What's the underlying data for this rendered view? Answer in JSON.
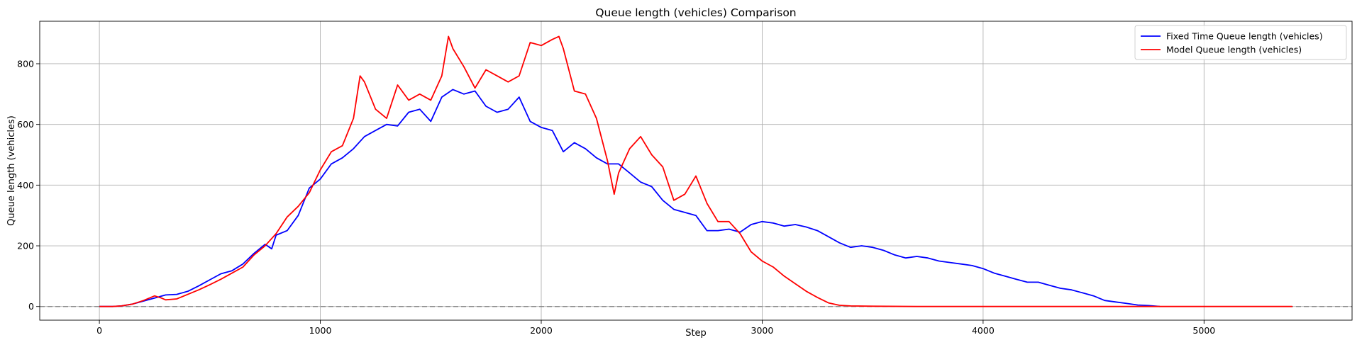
{
  "chart_data": {
    "type": "line",
    "title": "Queue length (vehicles) Comparison",
    "xlabel": "Step",
    "ylabel": "Queue length (vehicles)",
    "xlim": [
      -270,
      5670
    ],
    "ylim": [
      -45,
      940
    ],
    "xticks": [
      0,
      1000,
      2000,
      3000,
      4000,
      5000
    ],
    "yticks": [
      0,
      200,
      400,
      600,
      800
    ],
    "grid": true,
    "legend_position": "top-right",
    "reference_line": {
      "y": 0,
      "style": "dashed",
      "color": "#808080"
    },
    "series": [
      {
        "name": "Fixed Time Queue length (vehicles)",
        "color": "#0000ff",
        "points": [
          [
            0,
            0
          ],
          [
            60,
            0
          ],
          [
            100,
            2
          ],
          [
            150,
            8
          ],
          [
            200,
            18
          ],
          [
            250,
            28
          ],
          [
            300,
            38
          ],
          [
            350,
            40
          ],
          [
            400,
            50
          ],
          [
            450,
            68
          ],
          [
            500,
            88
          ],
          [
            550,
            108
          ],
          [
            600,
            118
          ],
          [
            650,
            140
          ],
          [
            700,
            175
          ],
          [
            750,
            205
          ],
          [
            780,
            190
          ],
          [
            800,
            235
          ],
          [
            850,
            250
          ],
          [
            900,
            300
          ],
          [
            950,
            390
          ],
          [
            1000,
            420
          ],
          [
            1050,
            470
          ],
          [
            1100,
            490
          ],
          [
            1150,
            520
          ],
          [
            1200,
            560
          ],
          [
            1250,
            580
          ],
          [
            1300,
            600
          ],
          [
            1350,
            595
          ],
          [
            1400,
            640
          ],
          [
            1450,
            650
          ],
          [
            1500,
            610
          ],
          [
            1550,
            690
          ],
          [
            1600,
            715
          ],
          [
            1650,
            700
          ],
          [
            1700,
            710
          ],
          [
            1750,
            660
          ],
          [
            1800,
            640
          ],
          [
            1850,
            650
          ],
          [
            1900,
            690
          ],
          [
            1950,
            610
          ],
          [
            2000,
            590
          ],
          [
            2050,
            580
          ],
          [
            2100,
            510
          ],
          [
            2150,
            540
          ],
          [
            2200,
            520
          ],
          [
            2250,
            490
          ],
          [
            2300,
            470
          ],
          [
            2350,
            470
          ],
          [
            2400,
            440
          ],
          [
            2450,
            410
          ],
          [
            2500,
            395
          ],
          [
            2550,
            350
          ],
          [
            2600,
            320
          ],
          [
            2650,
            310
          ],
          [
            2700,
            300
          ],
          [
            2750,
            250
          ],
          [
            2800,
            250
          ],
          [
            2850,
            255
          ],
          [
            2900,
            245
          ],
          [
            2950,
            270
          ],
          [
            3000,
            280
          ],
          [
            3050,
            275
          ],
          [
            3100,
            265
          ],
          [
            3150,
            270
          ],
          [
            3200,
            262
          ],
          [
            3250,
            250
          ],
          [
            3300,
            230
          ],
          [
            3350,
            210
          ],
          [
            3400,
            195
          ],
          [
            3450,
            200
          ],
          [
            3500,
            195
          ],
          [
            3550,
            185
          ],
          [
            3600,
            170
          ],
          [
            3650,
            160
          ],
          [
            3700,
            165
          ],
          [
            3750,
            160
          ],
          [
            3800,
            150
          ],
          [
            3850,
            145
          ],
          [
            3900,
            140
          ],
          [
            3950,
            135
          ],
          [
            4000,
            125
          ],
          [
            4050,
            110
          ],
          [
            4100,
            100
          ],
          [
            4150,
            90
          ],
          [
            4200,
            80
          ],
          [
            4250,
            80
          ],
          [
            4300,
            70
          ],
          [
            4350,
            60
          ],
          [
            4400,
            55
          ],
          [
            4450,
            45
          ],
          [
            4500,
            35
          ],
          [
            4550,
            20
          ],
          [
            4600,
            15
          ],
          [
            4650,
            10
          ],
          [
            4700,
            5
          ],
          [
            4750,
            3
          ],
          [
            4800,
            0
          ]
        ]
      },
      {
        "name": "Model Queue length (vehicles)",
        "color": "#ff0000",
        "points": [
          [
            0,
            0
          ],
          [
            60,
            0
          ],
          [
            100,
            2
          ],
          [
            150,
            8
          ],
          [
            200,
            20
          ],
          [
            250,
            35
          ],
          [
            280,
            28
          ],
          [
            300,
            22
          ],
          [
            350,
            25
          ],
          [
            400,
            40
          ],
          [
            450,
            55
          ],
          [
            500,
            72
          ],
          [
            550,
            90
          ],
          [
            600,
            110
          ],
          [
            650,
            130
          ],
          [
            700,
            170
          ],
          [
            750,
            200
          ],
          [
            800,
            240
          ],
          [
            850,
            295
          ],
          [
            900,
            330
          ],
          [
            950,
            375
          ],
          [
            1000,
            450
          ],
          [
            1050,
            510
          ],
          [
            1100,
            530
          ],
          [
            1150,
            620
          ],
          [
            1180,
            760
          ],
          [
            1200,
            740
          ],
          [
            1250,
            650
          ],
          [
            1300,
            620
          ],
          [
            1350,
            730
          ],
          [
            1400,
            680
          ],
          [
            1450,
            700
          ],
          [
            1500,
            680
          ],
          [
            1550,
            760
          ],
          [
            1580,
            890
          ],
          [
            1600,
            850
          ],
          [
            1650,
            790
          ],
          [
            1700,
            720
          ],
          [
            1750,
            780
          ],
          [
            1800,
            760
          ],
          [
            1850,
            740
          ],
          [
            1900,
            760
          ],
          [
            1950,
            870
          ],
          [
            2000,
            860
          ],
          [
            2050,
            880
          ],
          [
            2080,
            890
          ],
          [
            2100,
            850
          ],
          [
            2150,
            710
          ],
          [
            2200,
            700
          ],
          [
            2250,
            620
          ],
          [
            2300,
            480
          ],
          [
            2330,
            370
          ],
          [
            2350,
            440
          ],
          [
            2400,
            520
          ],
          [
            2450,
            560
          ],
          [
            2500,
            500
          ],
          [
            2550,
            460
          ],
          [
            2600,
            350
          ],
          [
            2650,
            370
          ],
          [
            2700,
            430
          ],
          [
            2750,
            340
          ],
          [
            2800,
            280
          ],
          [
            2850,
            280
          ],
          [
            2900,
            240
          ],
          [
            2950,
            180
          ],
          [
            3000,
            150
          ],
          [
            3050,
            130
          ],
          [
            3100,
            100
          ],
          [
            3150,
            75
          ],
          [
            3200,
            50
          ],
          [
            3250,
            30
          ],
          [
            3300,
            12
          ],
          [
            3350,
            4
          ],
          [
            3400,
            2
          ],
          [
            3500,
            1
          ],
          [
            3700,
            0
          ],
          [
            4000,
            0
          ],
          [
            4500,
            0
          ],
          [
            5000,
            0
          ],
          [
            5400,
            0
          ]
        ]
      }
    ]
  }
}
